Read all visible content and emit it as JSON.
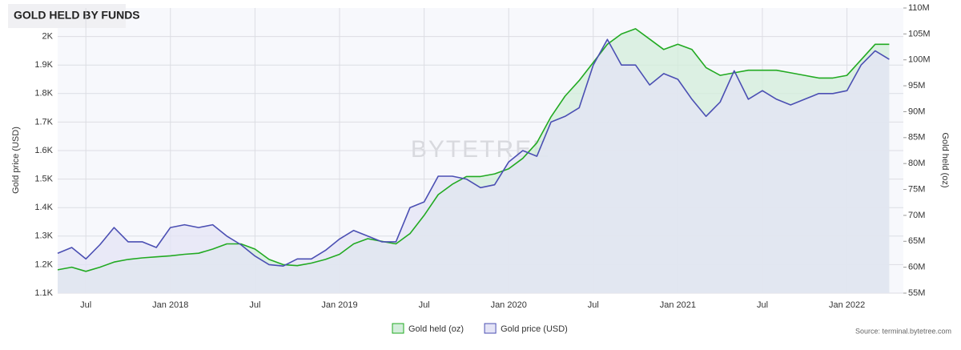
{
  "chart_data": {
    "type": "line",
    "title": "GOLD HELD BY FUNDS",
    "watermark": "BYTETREE",
    "source": "Source: terminal.bytetree.com",
    "ylabel": "Gold price (USD)",
    "y2label": "Gold held (oz)",
    "x": [
      "2017-05",
      "2017-06",
      "2017-07",
      "2017-08",
      "2017-09",
      "2017-10",
      "2017-11",
      "2017-12",
      "2018-01",
      "2018-02",
      "2018-03",
      "2018-04",
      "2018-05",
      "2018-06",
      "2018-07",
      "2018-08",
      "2018-09",
      "2018-10",
      "2018-11",
      "2018-12",
      "2019-01",
      "2019-02",
      "2019-03",
      "2019-04",
      "2019-05",
      "2019-06",
      "2019-07",
      "2019-08",
      "2019-09",
      "2019-10",
      "2019-11",
      "2019-12",
      "2020-01",
      "2020-02",
      "2020-03",
      "2020-04",
      "2020-05",
      "2020-06",
      "2020-07",
      "2020-08",
      "2020-09",
      "2020-10",
      "2020-11",
      "2020-12",
      "2021-01",
      "2021-02",
      "2021-03",
      "2021-04",
      "2021-05",
      "2021-06",
      "2021-07",
      "2021-08",
      "2021-09",
      "2021-10",
      "2021-11",
      "2021-12",
      "2022-01",
      "2022-02",
      "2022-03",
      "2022-04"
    ],
    "series": [
      {
        "name": "Gold held (oz)",
        "color": "#22aa22",
        "fill": "#d3eddb",
        "axis": "y2",
        "values": [
          59500000,
          60000000,
          59200000,
          60000000,
          61000000,
          61500000,
          61800000,
          62000000,
          62200000,
          62500000,
          62700000,
          63500000,
          64500000,
          64500000,
          63500000,
          61500000,
          60500000,
          60300000,
          60800000,
          61500000,
          62500000,
          64500000,
          65500000,
          65000000,
          64500000,
          66500000,
          70000000,
          74000000,
          76000000,
          77500000,
          77500000,
          78000000,
          79000000,
          81000000,
          84000000,
          89000000,
          93000000,
          96000000,
          99500000,
          103000000,
          105000000,
          106000000,
          104000000,
          102000000,
          103000000,
          102000000,
          98500000,
          97000000,
          97500000,
          98000000,
          98000000,
          98000000,
          97500000,
          97000000,
          96500000,
          96500000,
          97000000,
          100000000,
          103000000,
          103000000
        ]
      },
      {
        "name": "Gold price (USD)",
        "color": "#4b4fb3",
        "fill": "#e4e4f6",
        "axis": "y",
        "values": [
          1240,
          1260,
          1220,
          1270,
          1330,
          1280,
          1280,
          1260,
          1330,
          1340,
          1330,
          1340,
          1300,
          1270,
          1230,
          1200,
          1195,
          1220,
          1220,
          1250,
          1290,
          1320,
          1300,
          1280,
          1280,
          1400,
          1420,
          1510,
          1510,
          1500,
          1470,
          1480,
          1560,
          1600,
          1580,
          1700,
          1720,
          1750,
          1900,
          1990,
          1900,
          1900,
          1830,
          1870,
          1850,
          1780,
          1720,
          1770,
          1880,
          1780,
          1810,
          1780,
          1760,
          1780,
          1800,
          1800,
          1810,
          1900,
          1950,
          1920
        ]
      }
    ],
    "xlim": [
      "2017-05",
      "2022-05"
    ],
    "xticks": [
      {
        "value": "2017-07",
        "label": "Jul"
      },
      {
        "value": "2018-01",
        "label": "Jan 2018"
      },
      {
        "value": "2018-07",
        "label": "Jul"
      },
      {
        "value": "2019-01",
        "label": "Jan 2019"
      },
      {
        "value": "2019-07",
        "label": "Jul"
      },
      {
        "value": "2020-01",
        "label": "Jan 2020"
      },
      {
        "value": "2020-07",
        "label": "Jul"
      },
      {
        "value": "2021-01",
        "label": "Jan 2021"
      },
      {
        "value": "2021-07",
        "label": "Jul"
      },
      {
        "value": "2022-01",
        "label": "Jan 2022"
      }
    ],
    "ylim": [
      1100,
      2100
    ],
    "yticks": [
      {
        "value": 1100,
        "label": "1.1K"
      },
      {
        "value": 1200,
        "label": "1.2K"
      },
      {
        "value": 1300,
        "label": "1.3K"
      },
      {
        "value": 1400,
        "label": "1.4K"
      },
      {
        "value": 1500,
        "label": "1.5K"
      },
      {
        "value": 1600,
        "label": "1.6K"
      },
      {
        "value": 1700,
        "label": "1.7K"
      },
      {
        "value": 1800,
        "label": "1.8K"
      },
      {
        "value": 1900,
        "label": "1.9K"
      },
      {
        "value": 2000,
        "label": "2K"
      }
    ],
    "y2lim": [
      55000000,
      110000000
    ],
    "y2ticks": [
      {
        "value": 55000000,
        "label": "55M"
      },
      {
        "value": 60000000,
        "label": "60M"
      },
      {
        "value": 65000000,
        "label": "65M"
      },
      {
        "value": 70000000,
        "label": "70M"
      },
      {
        "value": 75000000,
        "label": "75M"
      },
      {
        "value": 80000000,
        "label": "80M"
      },
      {
        "value": 85000000,
        "label": "85M"
      },
      {
        "value": 90000000,
        "label": "90M"
      },
      {
        "value": 95000000,
        "label": "95M"
      },
      {
        "value": 100000000,
        "label": "100M"
      },
      {
        "value": 105000000,
        "label": "105M"
      },
      {
        "value": 110000000,
        "label": "110M"
      }
    ],
    "grid": true,
    "legend": "bottom"
  }
}
